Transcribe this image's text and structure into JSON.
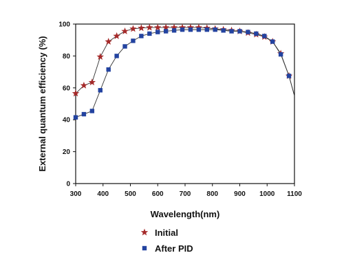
{
  "chart_data": {
    "type": "line",
    "title": "",
    "xlabel": "Wavelength(nm)",
    "ylabel": "External quantum efficiency (%)",
    "xlim": [
      300,
      1100
    ],
    "ylim": [
      0,
      100
    ],
    "xticks": [
      300,
      400,
      500,
      600,
      700,
      800,
      900,
      1000,
      1100
    ],
    "yticks": [
      0,
      20,
      40,
      60,
      80,
      100
    ],
    "grid": false,
    "legend": "below-center",
    "series": [
      {
        "name": "Initial",
        "marker": "star",
        "color": "#a52a2a",
        "x": [
          300,
          330,
          360,
          390,
          420,
          450,
          480,
          510,
          540,
          570,
          600,
          630,
          660,
          690,
          720,
          750,
          780,
          810,
          840,
          870,
          900,
          930,
          960,
          990,
          1020,
          1050,
          1080
        ],
        "y": [
          56.5,
          61.5,
          63.5,
          79.5,
          89,
          92.5,
          95.5,
          97,
          97.5,
          97.8,
          97.8,
          97.8,
          97.8,
          97.8,
          97.8,
          97.8,
          97.5,
          97,
          96.5,
          96,
          95.5,
          94.5,
          93.5,
          92,
          89,
          81.5,
          67.5
        ]
      },
      {
        "name": "After PID",
        "marker": "square",
        "color": "#2343a0",
        "x": [
          300,
          330,
          360,
          390,
          420,
          450,
          480,
          510,
          540,
          570,
          600,
          630,
          660,
          690,
          720,
          750,
          780,
          810,
          840,
          870,
          900,
          930,
          960,
          990,
          1020,
          1050,
          1080
        ],
        "y": [
          41.5,
          43.5,
          45.5,
          58.5,
          71.5,
          80,
          86,
          89.5,
          92.5,
          94,
          95,
          95.5,
          96,
          96.5,
          96.5,
          96.5,
          96.5,
          96.5,
          96,
          95.5,
          95.5,
          95,
          94,
          92.5,
          89,
          81,
          67.5
        ]
      }
    ],
    "curve_tail": {
      "x": 1100,
      "y": 55
    },
    "colors": {
      "axis": "#111111",
      "line": "#333333"
    }
  }
}
